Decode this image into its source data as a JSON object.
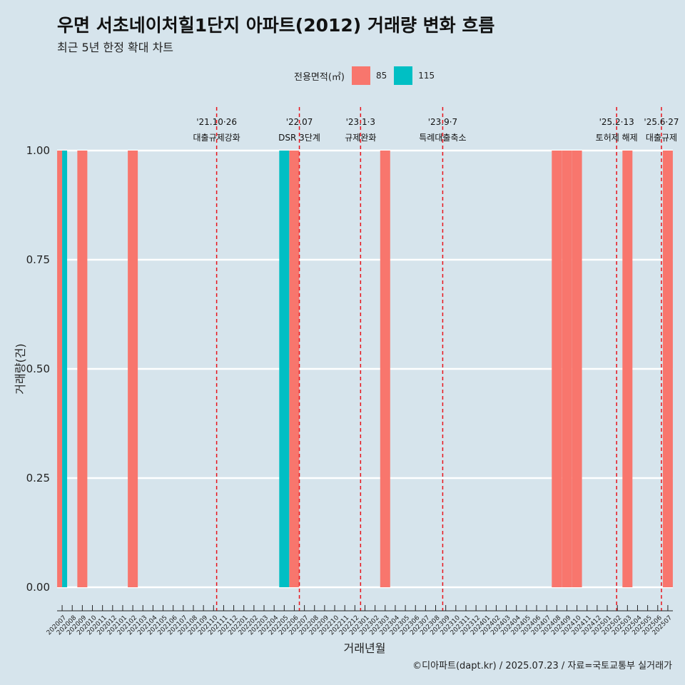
{
  "title": "우면 서초네이처힐1단지 아파트(2012) 거래량 변화 흐름",
  "subtitle": "최근 5년 한정 확대 차트",
  "caption": "©디아파트(dapt.kr) / 2025.07.23 / 자료=국토교통부 실거래가",
  "legend": {
    "title": "전용면적(㎡)",
    "items": [
      {
        "label": "85",
        "color": "#F8766D"
      },
      {
        "label": "115",
        "color": "#00BFC4"
      }
    ]
  },
  "chart_data": {
    "type": "bar",
    "xlabel": "거래년월",
    "ylabel": "거래량(건)",
    "ylim": [
      0,
      1
    ],
    "yticks": [
      "0.00",
      "0.25",
      "0.50",
      "0.75",
      "1.00"
    ],
    "categories": [
      "202007",
      "202008",
      "202009",
      "202010",
      "202011",
      "202012",
      "202101",
      "202102",
      "202103",
      "202104",
      "202105",
      "202106",
      "202107",
      "202108",
      "202109",
      "202110",
      "202111",
      "202112",
      "202201",
      "202202",
      "202203",
      "202204",
      "202205",
      "202206",
      "202207",
      "202208",
      "202209",
      "202210",
      "202211",
      "202212",
      "202301",
      "202302",
      "202303",
      "202304",
      "202305",
      "202306",
      "202307",
      "202308",
      "202309",
      "202310",
      "202311",
      "202312",
      "202401",
      "202402",
      "202403",
      "202404",
      "202405",
      "202406",
      "202407",
      "202408",
      "202409",
      "202410",
      "202411",
      "202412",
      "202501",
      "202502",
      "202503",
      "202504",
      "202505",
      "202506",
      "202507"
    ],
    "series": [
      {
        "name": "85",
        "color": "#F8766D",
        "values": [
          1,
          0,
          1,
          0,
          0,
          0,
          0,
          1,
          0,
          0,
          0,
          0,
          0,
          0,
          0,
          0,
          0,
          0,
          0,
          0,
          0,
          0,
          0,
          1,
          0,
          0,
          0,
          0,
          0,
          0,
          0,
          0,
          1,
          0,
          0,
          0,
          0,
          0,
          0,
          0,
          0,
          0,
          0,
          0,
          0,
          0,
          0,
          0,
          0,
          1,
          1,
          1,
          0,
          0,
          0,
          0,
          1,
          0,
          0,
          0,
          1
        ]
      },
      {
        "name": "115",
        "color": "#00BFC4",
        "values": [
          1,
          0,
          0,
          0,
          0,
          0,
          0,
          0,
          0,
          0,
          0,
          0,
          0,
          0,
          0,
          0,
          0,
          0,
          0,
          0,
          0,
          0,
          1,
          0,
          0,
          0,
          0,
          0,
          0,
          0,
          0,
          0,
          0,
          0,
          0,
          0,
          0,
          0,
          0,
          0,
          0,
          0,
          0,
          0,
          0,
          0,
          0,
          0,
          0,
          0,
          0,
          0,
          0,
          0,
          0,
          0,
          0,
          0,
          0,
          0,
          0
        ]
      }
    ],
    "events": [
      {
        "date": "2021-10-26",
        "line1": "'21.10·26",
        "line2": "대출규제강화"
      },
      {
        "date": "2022-07-01",
        "line1": "'22.07",
        "line2": "DSR 3단계"
      },
      {
        "date": "2023-01-03",
        "line1": "'23.1·3",
        "line2": "규제완화"
      },
      {
        "date": "2023-09-07",
        "line1": "'23.9·7",
        "line2": "특례대출축소"
      },
      {
        "date": "2025-02-13",
        "line1": "'25.2·13",
        "line2": "토허제 해제"
      },
      {
        "date": "2025-06-27",
        "line1": "'25.6·27",
        "line2": "대출규제"
      }
    ]
  }
}
